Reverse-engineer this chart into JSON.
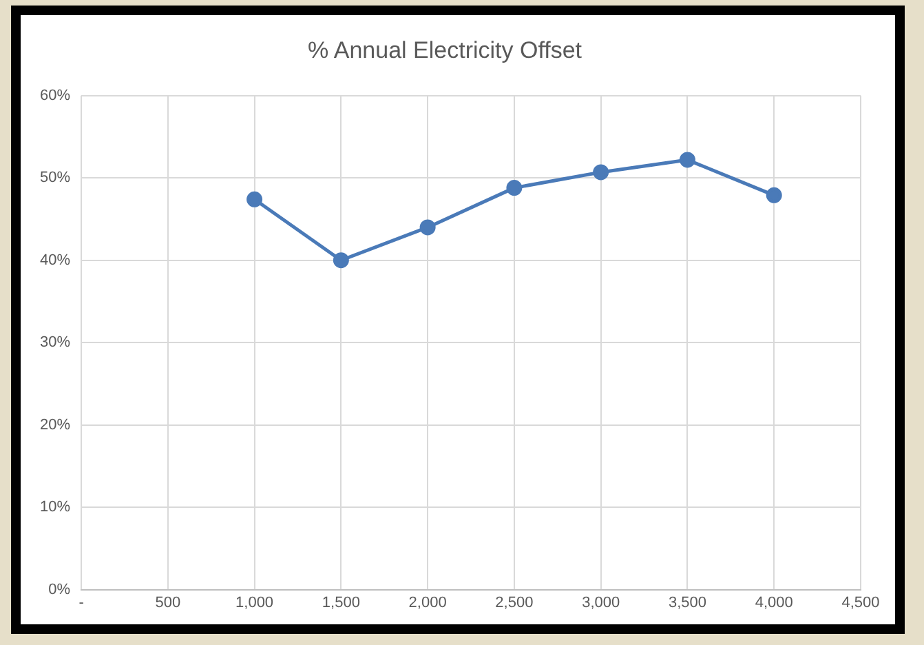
{
  "chart_data": {
    "type": "line",
    "title": "% Annual Electricity Offset",
    "x": [
      1000,
      1500,
      2000,
      2500,
      3000,
      3500,
      4000
    ],
    "series": [
      {
        "color": "#4a7ab8",
        "values": [
          47.4,
          40,
          44,
          48.8,
          50.7,
          52.2,
          47.9
        ]
      }
    ],
    "xlim": [
      0,
      4500
    ],
    "xticks": [
      {
        "value": 0,
        "label": "-"
      },
      500,
      {
        "value": 1000,
        "label": "1,000"
      },
      {
        "value": 1500,
        "label": "1,500"
      },
      {
        "value": 2000,
        "label": "2,000"
      },
      {
        "value": 2500,
        "label": "2,500"
      },
      {
        "value": 3000,
        "label": "3,000"
      },
      {
        "value": 3500,
        "label": "3,500"
      },
      {
        "value": 4000,
        "label": "4,000"
      },
      {
        "value": 4500,
        "label": "4,500"
      }
    ],
    "ylim": [
      0,
      60
    ],
    "yticks": [
      {
        "value": 0,
        "label": "0%"
      },
      {
        "value": 10,
        "label": "10%"
      },
      {
        "value": 20,
        "label": "20%"
      },
      {
        "value": 30,
        "label": "30%"
      },
      {
        "value": 40,
        "label": "40%"
      },
      {
        "value": 50,
        "label": "50%"
      },
      {
        "value": 60,
        "label": "60%"
      }
    ],
    "grid": true,
    "marker": "circle",
    "line_style": "solid",
    "legend": false
  }
}
